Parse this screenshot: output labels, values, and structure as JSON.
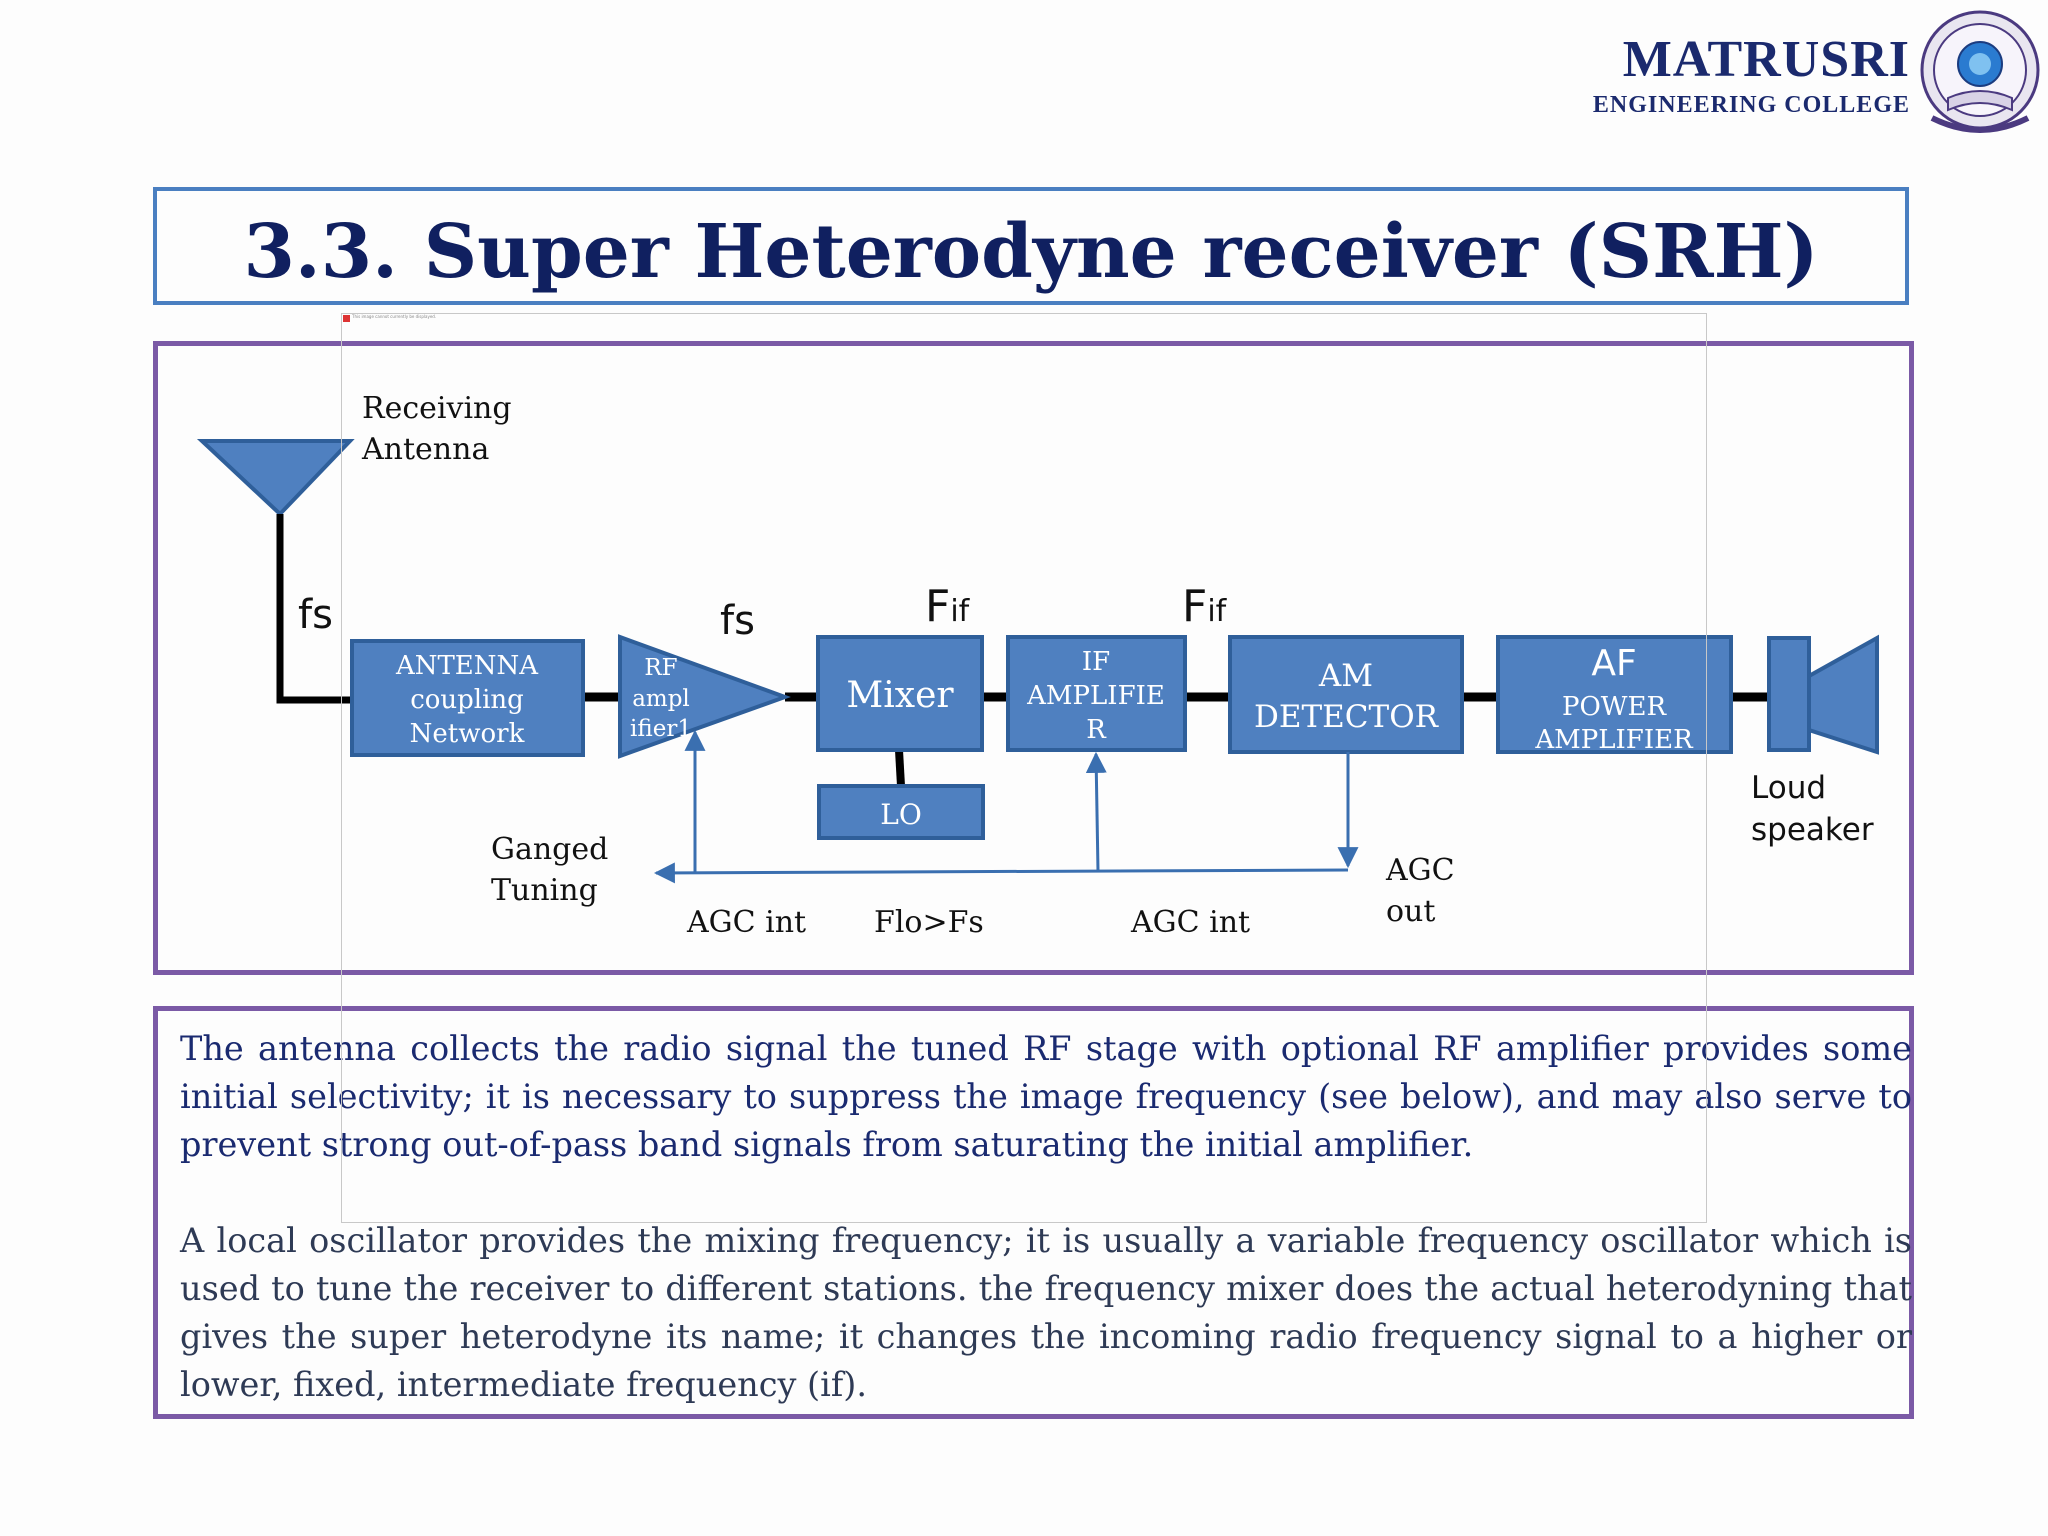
{
  "header": {
    "college_name": "MATRUSRI",
    "college_sub": "ENGINEERING COLLEGE"
  },
  "title": "3.3. Super Heterodyne receiver (SRH)",
  "diagram": {
    "antenna_label_1": "Receiving",
    "antenna_label_2": "Antenna",
    "freq_fs_1": "fs",
    "freq_fs_2": "fs",
    "fif_1_main": "F",
    "fif_1_sub": "if",
    "fif_2_main": "F",
    "fif_2_sub": "if",
    "blocks": {
      "antenna_coupling": [
        "ANTENNA",
        "coupling",
        "Network"
      ],
      "rf_amp": [
        "RF",
        "ampl",
        "ifier1"
      ],
      "mixer": "Mixer",
      "if_amp": [
        "IF",
        "AMPLIFIE",
        "R"
      ],
      "am_detector": [
        "AM",
        "DETECTOR"
      ],
      "af_amp": [
        "AF",
        "POWER",
        "AMPLIFIER"
      ],
      "lo": "LO"
    },
    "ganged_tuning": [
      "Ganged",
      "Tuning"
    ],
    "agc_int_1": "AGC int",
    "flo_fs": "Flo>Fs",
    "agc_int_2": "AGC int",
    "agc_out": [
      "AGC",
      "out"
    ],
    "loudspeaker": [
      "Loud",
      "speaker"
    ]
  },
  "overlay_note": "This image cannot currently be displayed.",
  "paragraphs": [
    "The antenna collects the radio signal the tuned RF stage with optional RF amplifier provides some initial selectivity; it is necessary to suppress the image frequency (see below), and may also serve to prevent strong out-of-pass band signals from saturating the initial amplifier.",
    "A local oscillator provides the mixing frequency; it is usually a variable frequency oscillator which is used to tune the receiver to different stations. the frequency mixer does the actual heterodyning that gives the super heterodyne its name; it changes the incoming radio frequency signal to a higher or lower, fixed, intermediate frequency (if)."
  ],
  "colors": {
    "title": "#102060",
    "block_fill": "#4f80c0",
    "block_border": "#2f5f9a",
    "frame_blue": "#4a7fc1",
    "frame_purple": "#7b5aa6",
    "text_blue": "#1a2a70"
  }
}
